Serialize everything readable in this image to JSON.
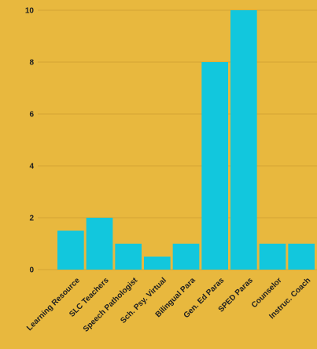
{
  "chart_data": {
    "type": "bar",
    "categories": [
      "Learning Resource",
      "SLC Teachers",
      "Speech Pathologist",
      "Sch. Psy. Virtual",
      "Bilingual Para",
      "Gen. Ed Paras",
      "SPED Paras",
      "Counselor",
      "Instruc. Coach"
    ],
    "values": [
      1.5,
      2,
      1,
      0.5,
      1,
      8,
      10,
      1,
      1
    ],
    "yticks": [
      "0",
      "2",
      "4",
      "6",
      "8",
      "10"
    ],
    "ylim": [
      0,
      10
    ],
    "grid": true,
    "title": "",
    "xlabel": "",
    "ylabel": "",
    "colors": {
      "background": "#E8B83E",
      "bar": "#12C7DD",
      "grid": "#D4A534",
      "text": "#1F1F1F"
    }
  }
}
